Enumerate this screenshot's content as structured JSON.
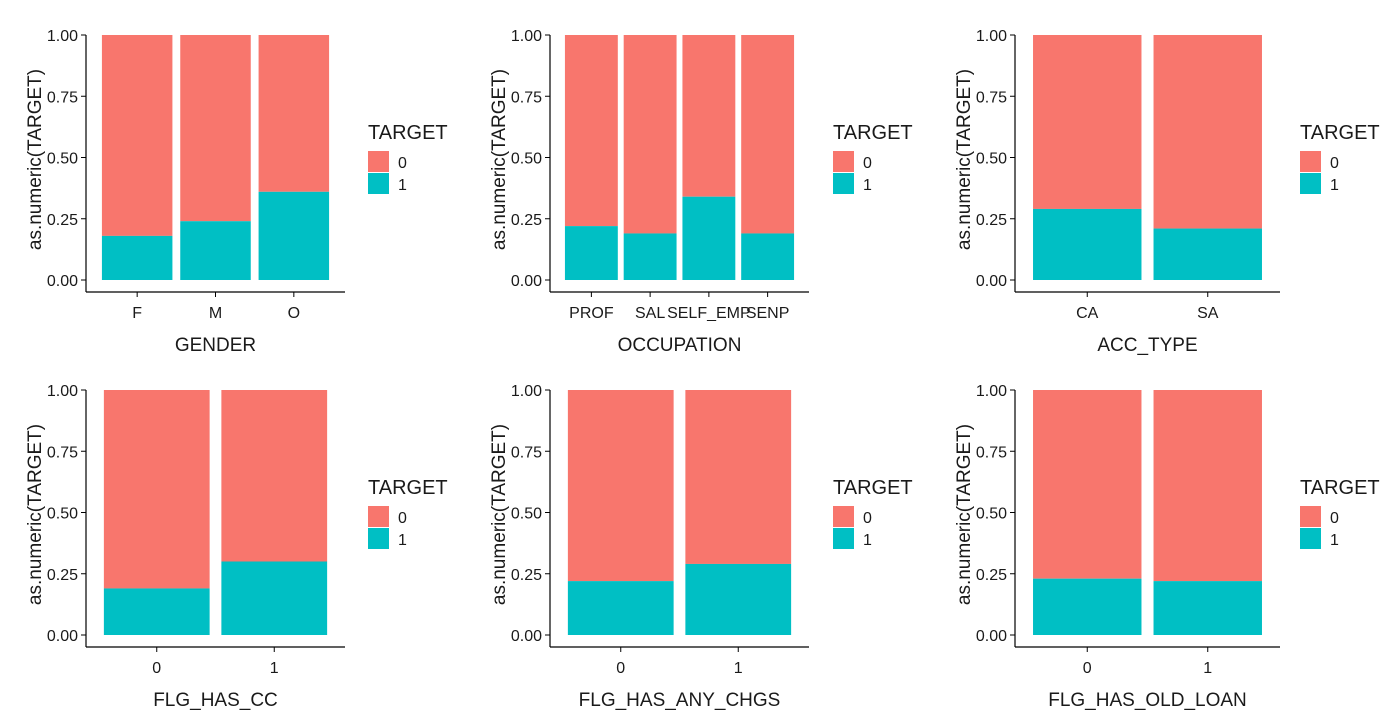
{
  "colors": {
    "target_0": "#f8766d",
    "target_1": "#00bfc4",
    "axis": "#000000",
    "text": "#1a1a1a"
  },
  "legend": {
    "title": "TARGET",
    "labels": [
      "0",
      "1"
    ]
  },
  "y_ticks": [
    "0.00",
    "0.25",
    "0.50",
    "0.75",
    "1.00"
  ],
  "chart_data": [
    {
      "type": "bar",
      "stacked": true,
      "xlabel": "GENDER",
      "ylabel": "as.numeric(TARGET)",
      "ylim": [
        0,
        1
      ],
      "categories": [
        "F",
        "M",
        "O"
      ],
      "series": [
        {
          "name": "0",
          "values": [
            0.82,
            0.76,
            0.64
          ]
        },
        {
          "name": "1",
          "values": [
            0.18,
            0.24,
            0.36
          ]
        }
      ],
      "legend_position": "right",
      "grid": false
    },
    {
      "type": "bar",
      "stacked": true,
      "xlabel": "OCCUPATION",
      "ylabel": "as.numeric(TARGET)",
      "ylim": [
        0,
        1
      ],
      "categories": [
        "PROF",
        "SAL",
        "SELF_EMP",
        "SENP"
      ],
      "series": [
        {
          "name": "0",
          "values": [
            0.78,
            0.81,
            0.66,
            0.81
          ]
        },
        {
          "name": "1",
          "values": [
            0.22,
            0.19,
            0.34,
            0.19
          ]
        }
      ],
      "legend_position": "right",
      "grid": false
    },
    {
      "type": "bar",
      "stacked": true,
      "xlabel": "ACC_TYPE",
      "ylabel": "as.numeric(TARGET)",
      "ylim": [
        0,
        1
      ],
      "categories": [
        "CA",
        "SA"
      ],
      "series": [
        {
          "name": "0",
          "values": [
            0.71,
            0.79
          ]
        },
        {
          "name": "1",
          "values": [
            0.29,
            0.21
          ]
        }
      ],
      "legend_position": "right",
      "grid": false
    },
    {
      "type": "bar",
      "stacked": true,
      "xlabel": "FLG_HAS_CC",
      "ylabel": "as.numeric(TARGET)",
      "ylim": [
        0,
        1
      ],
      "categories": [
        "0",
        "1"
      ],
      "series": [
        {
          "name": "0",
          "values": [
            0.81,
            0.7
          ]
        },
        {
          "name": "1",
          "values": [
            0.19,
            0.3
          ]
        }
      ],
      "legend_position": "right",
      "grid": false
    },
    {
      "type": "bar",
      "stacked": true,
      "xlabel": "FLG_HAS_ANY_CHGS",
      "ylabel": "as.numeric(TARGET)",
      "ylim": [
        0,
        1
      ],
      "categories": [
        "0",
        "1"
      ],
      "series": [
        {
          "name": "0",
          "values": [
            0.78,
            0.71
          ]
        },
        {
          "name": "1",
          "values": [
            0.22,
            0.29
          ]
        }
      ],
      "legend_position": "right",
      "grid": false
    },
    {
      "type": "bar",
      "stacked": true,
      "xlabel": "FLG_HAS_OLD_LOAN",
      "ylabel": "as.numeric(TARGET)",
      "ylim": [
        0,
        1
      ],
      "categories": [
        "0",
        "1"
      ],
      "series": [
        {
          "name": "0",
          "values": [
            0.77,
            0.78
          ]
        },
        {
          "name": "1",
          "values": [
            0.23,
            0.22
          ]
        }
      ],
      "legend_position": "right",
      "grid": false
    }
  ]
}
